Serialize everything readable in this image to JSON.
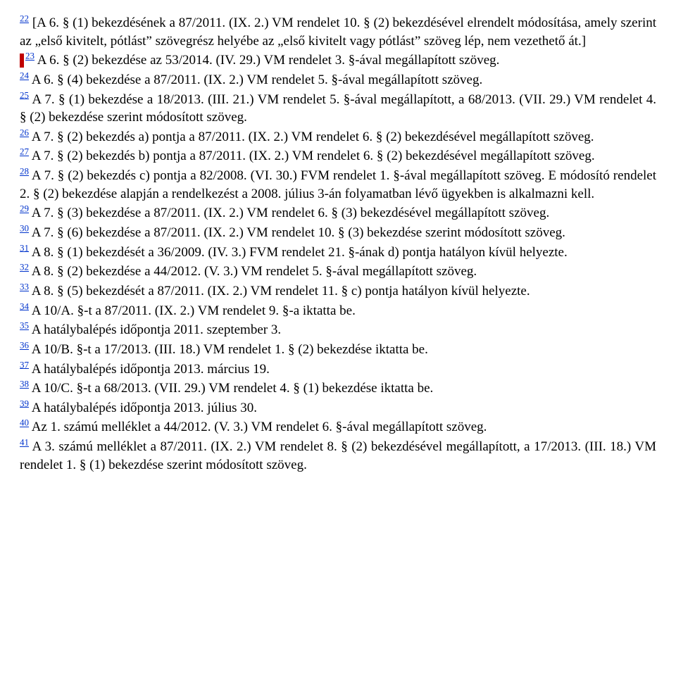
{
  "notes": {
    "n22": {
      "ref": "22",
      "text": " [A 6. § (1) bekezdésének a 87/2011. (IX. 2.) VM rendelet 10. § (2) bekezdésével elrendelt módosítása, amely szerint az „első kivitelt, pótlást” szövegrész helyébe az „első kivitelt vagy pótlást” szöveg lép, nem vezethető át.]"
    },
    "n23": {
      "ref": "23",
      "text": " A 6. § (2) bekezdése az 53/2014. (IV. 29.) VM rendelet 3. §-ával megállapított szöveg."
    },
    "n24": {
      "ref": "24",
      "text": " A 6. § (4) bekezdése a 87/2011. (IX. 2.) VM rendelet 5. §-ával megállapított szöveg."
    },
    "n25": {
      "ref": "25",
      "text": " A 7. § (1) bekezdése a 18/2013. (III. 21.) VM rendelet 5. §-ával megállapított, a 68/2013. (VII. 29.) VM rendelet 4. § (2) bekezdése szerint módosított szöveg."
    },
    "n26": {
      "ref": "26",
      "text": " A 7. § (2) bekezdés a) pontja a 87/2011. (IX. 2.) VM rendelet 6. § (2) bekezdésével megállapított szöveg."
    },
    "n27": {
      "ref": "27",
      "text": " A 7. § (2) bekezdés b) pontja a 87/2011. (IX. 2.) VM rendelet 6. § (2) bekezdésével megállapított szöveg."
    },
    "n28": {
      "ref": "28",
      "text": " A 7. § (2) bekezdés c) pontja a 82/2008. (VI. 30.) FVM rendelet 1. §-ával megállapított szöveg. E módosító rendelet 2. § (2) bekezdése alapján a rendelkezést a 2008. július 3-án folyamatban lévő ügyekben is alkalmazni kell."
    },
    "n29": {
      "ref": "29",
      "text": " A 7. § (3) bekezdése a 87/2011. (IX. 2.) VM rendelet 6. § (3) bekezdésével megállapított szöveg."
    },
    "n30": {
      "ref": "30",
      "text": " A 7. § (6) bekezdése a 87/2011. (IX. 2.) VM rendelet 10. § (3) bekezdése szerint módosított szöveg."
    },
    "n31": {
      "ref": "31",
      "text": " A 8. § (1) bekezdését a 36/2009. (IV. 3.) FVM rendelet 21. §-ának d) pontja hatályon kívül helyezte."
    },
    "n32": {
      "ref": "32",
      "text": " A 8. § (2) bekezdése a 44/2012. (V. 3.) VM rendelet 5. §-ával megállapított szöveg."
    },
    "n33": {
      "ref": "33",
      "text": " A 8. § (5) bekezdését a 87/2011. (IX. 2.) VM rendelet 11. § c) pontja hatályon kívül helyezte."
    },
    "n34": {
      "ref": "34",
      "text": " A 10/A. §-t a 87/2011. (IX. 2.) VM rendelet 9. §-a iktatta be."
    },
    "n35": {
      "ref": "35",
      "text": " A hatálybalépés időpontja 2011. szeptember 3."
    },
    "n36": {
      "ref": "36",
      "text": " A 10/B. §-t a 17/2013. (III. 18.) VM rendelet 1. § (2) bekezdése iktatta be."
    },
    "n37": {
      "ref": "37",
      "text": " A hatálybalépés időpontja 2013. március 19."
    },
    "n38": {
      "ref": "38",
      "text": " A 10/C. §-t a 68/2013. (VII. 29.) VM rendelet 4. § (1) bekezdése iktatta be."
    },
    "n39": {
      "ref": "39",
      "text": " A hatálybalépés időpontja 2013. július 30."
    },
    "n40": {
      "ref": "40",
      "text": " Az 1. számú melléklet a 44/2012. (V. 3.) VM rendelet 6. §-ával megállapított szöveg."
    },
    "n41": {
      "ref": "41",
      "text": " A 3. számú melléklet a 87/2011. (IX. 2.) VM rendelet 8. § (2) bekezdésével megállapított, a 17/2013. (III. 18.) VM rendelet 1. § (1) bekezdése szerint módosított szöveg."
    }
  }
}
